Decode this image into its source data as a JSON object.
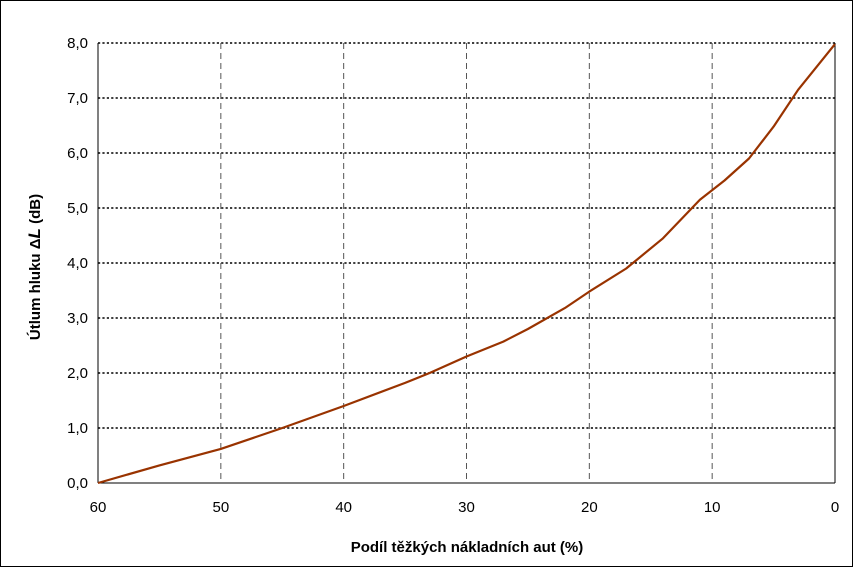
{
  "chart_data": {
    "type": "line",
    "title": "",
    "xlabel": "Podíl těžkých nákladních aut (%)",
    "ylabel_prefix": "Útlum hluku ",
    "ylabel_delta": "Δ",
    "ylabel_var": "L",
    "ylabel_suffix": " (dB)",
    "x_reversed": true,
    "xlim": [
      0,
      60
    ],
    "ylim": [
      0,
      8
    ],
    "x_ticks": [
      60,
      50,
      40,
      30,
      20,
      10,
      0
    ],
    "x_tick_labels": [
      "60",
      "50",
      "40",
      "30",
      "20",
      "10",
      "0"
    ],
    "y_ticks": [
      0,
      1,
      2,
      3,
      4,
      5,
      6,
      7,
      8
    ],
    "y_tick_labels": [
      "0,0",
      "1,0",
      "2,0",
      "3,0",
      "4,0",
      "5,0",
      "6,0",
      "7,0",
      "8,0"
    ],
    "grid": true,
    "line_color": "#993300",
    "series": [
      {
        "x": [
          60,
          55,
          50,
          45,
          40,
          35,
          33,
          30,
          27,
          25,
          22,
          20,
          17,
          14,
          11,
          9,
          7,
          5,
          3,
          0
        ],
        "values": [
          0.0,
          0.32,
          0.62,
          1.0,
          1.4,
          1.82,
          2.0,
          2.3,
          2.57,
          2.8,
          3.18,
          3.48,
          3.9,
          4.45,
          5.15,
          5.5,
          5.9,
          6.48,
          7.15,
          7.98
        ]
      }
    ]
  }
}
